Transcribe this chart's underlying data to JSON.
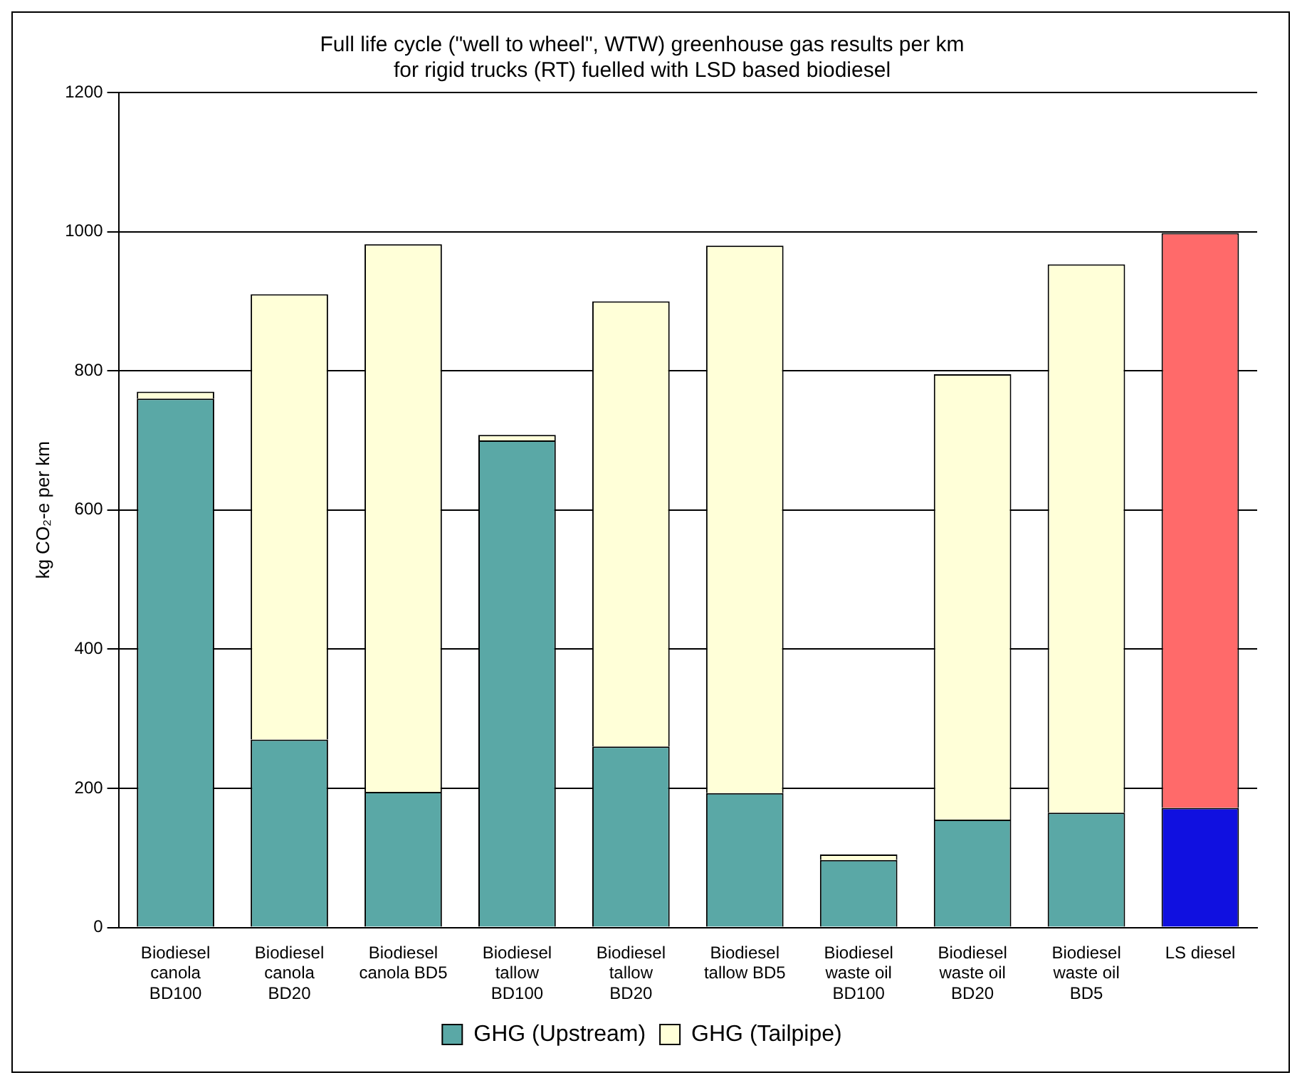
{
  "chart_data": {
    "type": "bar",
    "title": "Full life cycle (\"well to wheel\", WTW) greenhouse gas results per km\nfor rigid trucks (RT) fuelled with LSD based biodiesel",
    "ylabel": "kg CO₂-e per km",
    "categories": [
      "Biodiesel canola BD100",
      "Biodiesel canola BD20",
      "Biodiesel canola BD5",
      "Biodiesel tallow BD100",
      "Biodiesel tallow BD20",
      "Biodiesel tallow BD5",
      "Biodiesel waste oil BD100",
      "Biodiesel waste oil BD20",
      "Biodiesel waste oil BD5",
      "LS diesel"
    ],
    "series": [
      {
        "name": "GHG (Upstream)",
        "color": "#5aa8a6",
        "colors": [
          "#5aa8a6",
          "#5aa8a6",
          "#5aa8a6",
          "#5aa8a6",
          "#5aa8a6",
          "#5aa8a6",
          "#5aa8a6",
          "#5aa8a6",
          "#5aa8a6",
          "#1010e0"
        ],
        "values": [
          760,
          270,
          195,
          700,
          260,
          193,
          97,
          155,
          165,
          172
        ]
      },
      {
        "name": "GHG (Tailpipe)",
        "color": "#ffffd8",
        "colors": [
          "#ffffd8",
          "#ffffd8",
          "#ffffd8",
          "#ffffd8",
          "#ffffd8",
          "#ffffd8",
          "#ffffd8",
          "#ffffd8",
          "#ffffd8",
          "#ff6a6a"
        ],
        "values": [
          10,
          640,
          787,
          8,
          640,
          787,
          8,
          640,
          788,
          826
        ]
      }
    ],
    "stacked": true,
    "ylim": [
      0,
      1200
    ],
    "yticks": [
      0,
      200,
      400,
      600,
      800,
      1000,
      1200
    ],
    "grid": "y",
    "legend": "bottom"
  }
}
